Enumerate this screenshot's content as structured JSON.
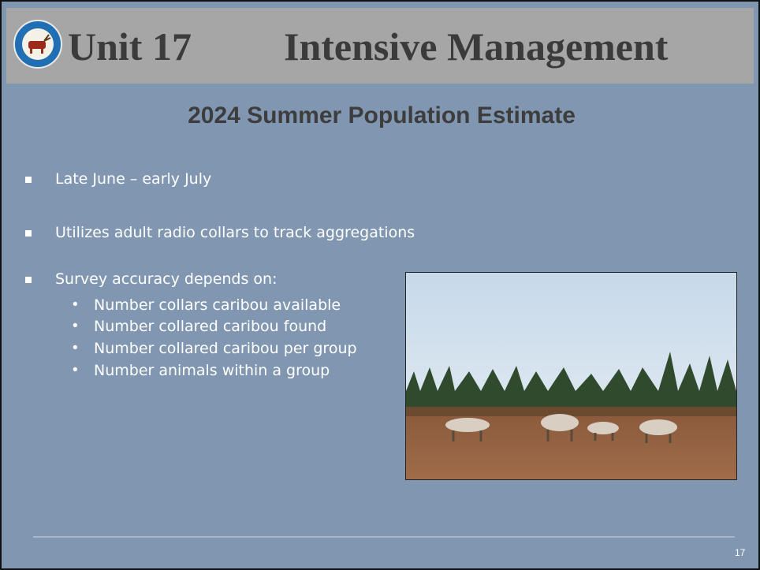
{
  "header": {
    "unit": "Unit 17",
    "title": "Intensive Management",
    "subtitle": "2024 Summer Population Estimate"
  },
  "bullets": [
    {
      "text": "Late June – early July"
    },
    {
      "text": "Utilizes adult radio collars to track aggregations"
    },
    {
      "text": "Survey accuracy depends on:",
      "subitems": [
        "Number collars caribou available",
        "Number collared caribou found",
        "Number collared caribou per group",
        "Number animals within a group"
      ]
    }
  ],
  "footer": {
    "page": "17"
  }
}
